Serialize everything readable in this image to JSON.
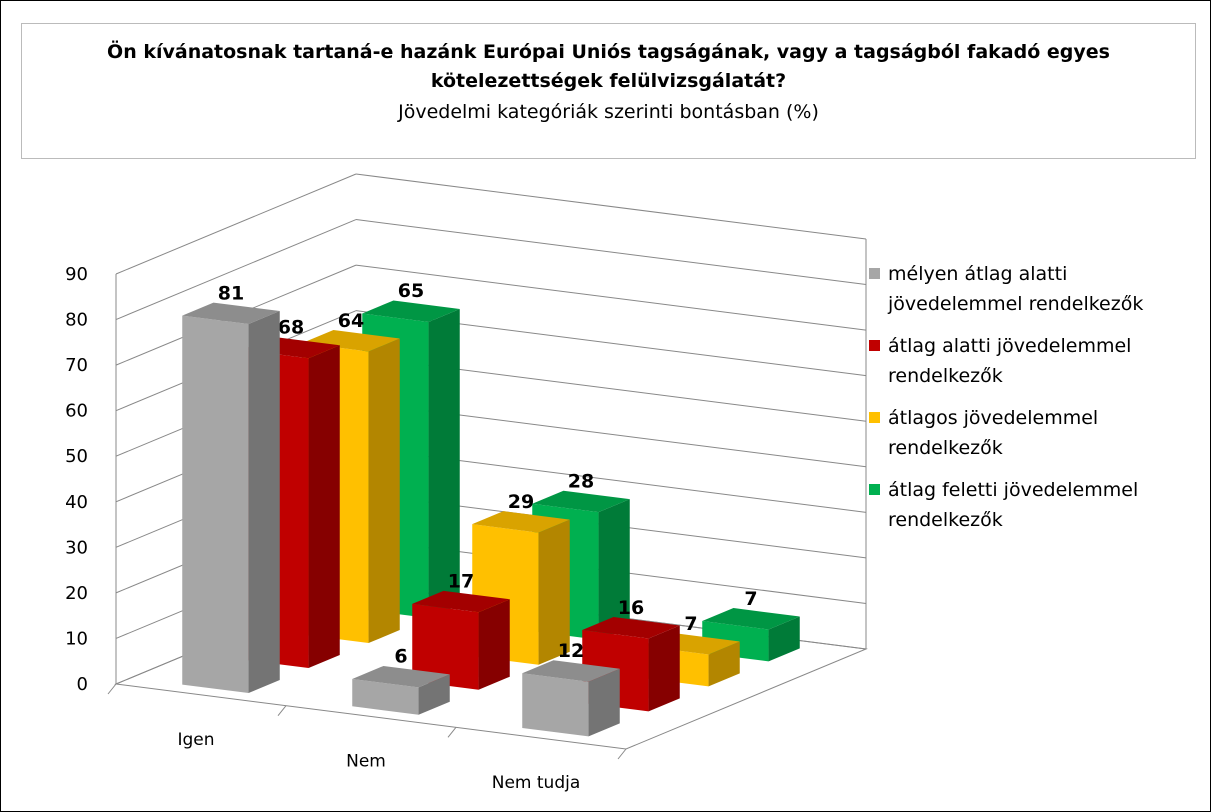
{
  "chart_data": {
    "type": "bar3d",
    "title": "Ön kívánatosnak tartaná-e hazánk Európai Uniós tagságának, vagy a tagságból fakadó egyes kötelezettségek felülvizsgálatát?",
    "subtitle": "Jövedelmi kategóriák szerinti bontásban (%)",
    "categories": [
      "Igen",
      "Nem",
      "Nem tudja"
    ],
    "series": [
      {
        "name": "mélyen átlag alatti jövedelemmel rendelkezők",
        "color": "#a6a6a6",
        "values": [
          81,
          6,
          12
        ]
      },
      {
        "name": "átlag alatti jövedelemmel rendelkezők",
        "color": "#c00000",
        "values": [
          68,
          17,
          16
        ]
      },
      {
        "name": "átlagos jövedelemmel rendelkezők",
        "color": "#ffc000",
        "values": [
          64,
          29,
          7
        ]
      },
      {
        "name": "átlag feletti jövedelemmel rendelkezők",
        "color": "#00b050",
        "values": [
          65,
          28,
          7
        ]
      }
    ],
    "ylim": [
      0,
      90
    ],
    "yticks": [
      0,
      10,
      20,
      30,
      40,
      50,
      60,
      70,
      80,
      90
    ],
    "grid": true,
    "legend": "right"
  }
}
